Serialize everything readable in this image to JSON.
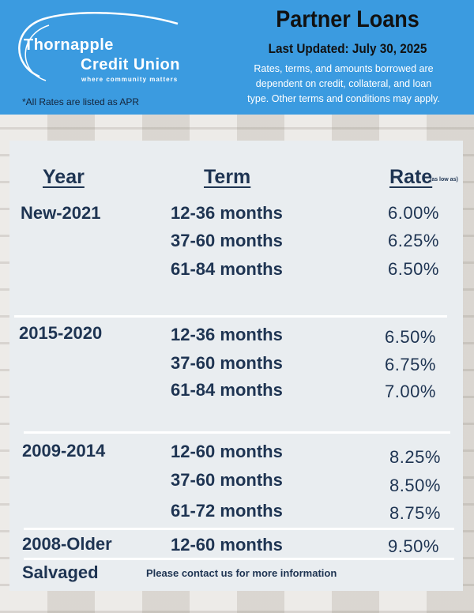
{
  "header": {
    "logo_line1": "Thornapple",
    "logo_line2": "Credit Union",
    "logo_tagline": "where community matters",
    "apr_note": "*All Rates are listed as APR",
    "title": "Partner Loans",
    "last_updated": "Last Updated: July 30, 2025",
    "disclaimer_lines": [
      "Rates, terms, and amounts borrowed are",
      "dependent on credit, collateral, and loan",
      "type. Other terms and conditions may apply."
    ]
  },
  "table": {
    "col_year": "Year",
    "col_term": "Term",
    "col_rate": "Rate",
    "col_rate_note": "(as low as)",
    "groups": [
      {
        "year": "New-2021",
        "rows": [
          {
            "term": "12-36 months",
            "rate": "6.00%"
          },
          {
            "term": "37-60 months",
            "rate": "6.25%"
          },
          {
            "term": "61-84 months",
            "rate": "6.50%"
          }
        ]
      },
      {
        "year": "2015-2020",
        "rows": [
          {
            "term": "12-36 months",
            "rate": "6.50%"
          },
          {
            "term": "37-60 months",
            "rate": "6.75%"
          },
          {
            "term": "61-84 months",
            "rate": "7.00%"
          }
        ]
      },
      {
        "year": "2009-2014",
        "rows": [
          {
            "term": "12-60 months",
            "rate": "8.25%"
          },
          {
            "term": "37-60 months",
            "rate": "8.50%"
          },
          {
            "term": "61-72 months",
            "rate": "8.75%"
          }
        ]
      },
      {
        "year": "2008-Older",
        "rows": [
          {
            "term": "12-60 months",
            "rate": "9.50%"
          }
        ]
      }
    ],
    "salvaged": {
      "year": "Salvaged",
      "note": "Please contact us for more information"
    }
  },
  "colors": {
    "header_blue": "#3b9be0",
    "text_navy": "#1e3452",
    "panel": "#e9edf0"
  }
}
